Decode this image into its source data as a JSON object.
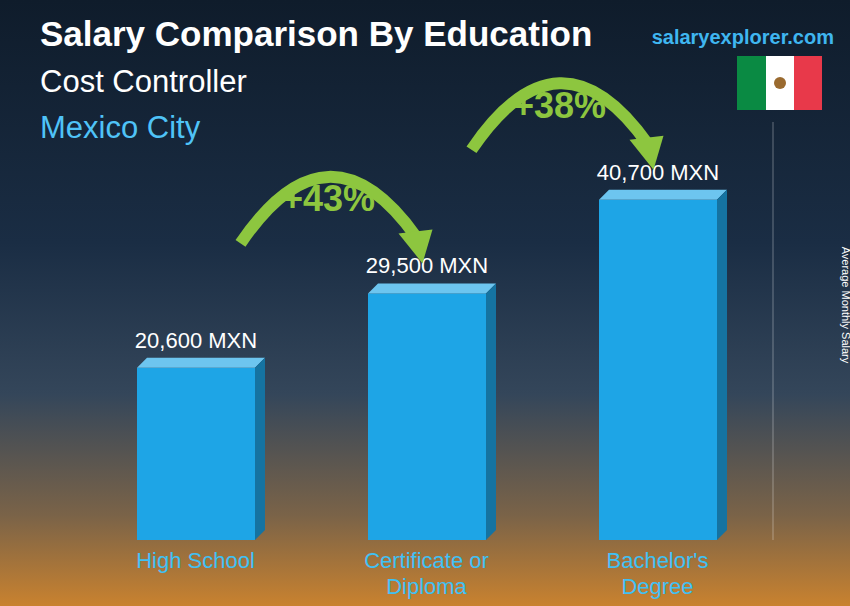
{
  "chart_data": {
    "type": "bar",
    "title": "Salary Comparison By Education",
    "subtitle": "Cost Controller",
    "location": "Mexico City",
    "source": "salaryexplorer.com",
    "y_label": "Average Monthly Salary",
    "categories": [
      "High School",
      "Certificate or Diploma",
      "Bachelor's Degree"
    ],
    "values": [
      20600,
      29500,
      40700
    ],
    "value_labels": [
      "20,600 MXN",
      "29,500 MXN",
      "40,700 MXN"
    ],
    "data_labels": true,
    "annotations": [
      "+43%",
      "+38%"
    ],
    "color": "#1ea5e6",
    "ylim": [
      0,
      50000
    ],
    "grid": false,
    "tick_labels": "x"
  }
}
